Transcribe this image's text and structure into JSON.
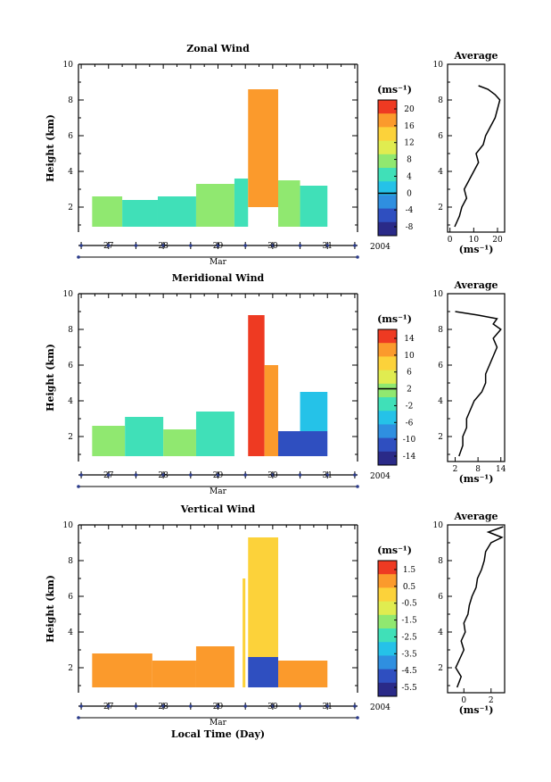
{
  "chart_data": [
    {
      "type": "heatmap",
      "title": "Zonal Wind",
      "ylabel": "Height (km)",
      "xlabel": "",
      "ylim": [
        0.6,
        10
      ],
      "y_ticks": [
        "2",
        "4",
        "6",
        "8",
        "10"
      ],
      "x_day_ticks": [
        "27",
        "28",
        "29",
        "30",
        "31"
      ],
      "month_label": "Mar",
      "year_label": "2004",
      "colorbar": {
        "unit": "(ms⁻¹)",
        "ticks": [
          "20",
          "16",
          "12",
          "8",
          "4",
          "0",
          "-4",
          "-8"
        ],
        "range": [
          -10,
          22
        ],
        "zero_contour": 0
      },
      "data_blocks": [
        {
          "day_start": 26.7,
          "day_end": 27.25,
          "z_bottom": 0.9,
          "z_top": 2.6,
          "value": 6
        },
        {
          "day_start": 27.25,
          "day_end": 27.9,
          "z_bottom": 0.9,
          "z_top": 2.4,
          "value": 4
        },
        {
          "day_start": 27.9,
          "day_end": 28.6,
          "z_bottom": 0.9,
          "z_top": 2.6,
          "value": 3
        },
        {
          "day_start": 28.6,
          "day_end": 29.3,
          "z_bottom": 0.9,
          "z_top": 3.3,
          "value": 6
        },
        {
          "day_start": 29.3,
          "day_end": 29.55,
          "z_bottom": 0.9,
          "z_top": 3.6,
          "value": 3
        },
        {
          "day_start": 29.55,
          "day_end": 30.1,
          "z_bottom": 2.0,
          "z_top": 8.6,
          "value": 18
        },
        {
          "day_start": 30.1,
          "day_end": 30.5,
          "z_bottom": 0.9,
          "z_top": 3.5,
          "value": 9
        },
        {
          "day_start": 30.5,
          "day_end": 31.0,
          "z_bottom": 0.9,
          "z_top": 3.2,
          "value": 4
        }
      ],
      "profile": {
        "title": "Average",
        "xlabel": "(ms⁻¹)",
        "x_ticks": [
          "0",
          "10",
          "20"
        ],
        "xlim": [
          -1,
          23
        ],
        "height": [
          0.9,
          1.5,
          2.0,
          2.5,
          3.0,
          3.5,
          4.0,
          4.5,
          5.0,
          5.5,
          6.0,
          6.5,
          7.0,
          7.5,
          8.0,
          8.3,
          8.6,
          8.8
        ],
        "value": [
          2,
          4,
          5,
          7,
          6,
          8,
          10,
          12,
          11,
          14,
          15,
          17,
          19,
          20,
          21,
          19,
          16,
          12
        ]
      }
    },
    {
      "type": "heatmap",
      "title": "Meridional Wind",
      "ylabel": "Height (km)",
      "xlabel": "",
      "ylim": [
        0.6,
        10
      ],
      "y_ticks": [
        "2",
        "4",
        "6",
        "8",
        "10"
      ],
      "x_day_ticks": [
        "27",
        "28",
        "29",
        "30",
        "31"
      ],
      "month_label": "Mar",
      "year_label": "2004",
      "colorbar": {
        "unit": "(ms⁻¹)",
        "ticks": [
          "14",
          "10",
          "6",
          "2",
          "-2",
          "-6",
          "-10",
          "-14"
        ],
        "range": [
          -16,
          16
        ],
        "zero_contour": 2
      },
      "data_blocks": [
        {
          "day_start": 26.7,
          "day_end": 27.3,
          "z_bottom": 0.9,
          "z_top": 2.6,
          "value": 0
        },
        {
          "day_start": 27.3,
          "day_end": 28.0,
          "z_bottom": 0.9,
          "z_top": 3.1,
          "value": -1
        },
        {
          "day_start": 28.0,
          "day_end": 28.6,
          "z_bottom": 0.9,
          "z_top": 2.4,
          "value": 1
        },
        {
          "day_start": 28.6,
          "day_end": 29.3,
          "z_bottom": 0.9,
          "z_top": 3.4,
          "value": -1
        },
        {
          "day_start": 29.55,
          "day_end": 29.85,
          "z_bottom": 0.9,
          "z_top": 8.8,
          "value": 16
        },
        {
          "day_start": 29.85,
          "day_end": 30.1,
          "z_bottom": 0.9,
          "z_top": 6.0,
          "value": 12
        },
        {
          "day_start": 30.1,
          "day_end": 31.0,
          "z_bottom": 0.9,
          "z_top": 2.3,
          "value": -12
        },
        {
          "day_start": 30.5,
          "day_end": 31.0,
          "z_bottom": 2.3,
          "z_top": 4.5,
          "value": -4
        }
      ],
      "profile": {
        "title": "Average",
        "xlabel": "(ms⁻¹)",
        "x_ticks": [
          "2",
          "8",
          "14"
        ],
        "xlim": [
          0,
          15
        ],
        "height": [
          0.9,
          1.5,
          2.0,
          2.5,
          3.0,
          3.5,
          4.0,
          4.5,
          5.0,
          5.5,
          6.0,
          6.5,
          7.0,
          7.5,
          8.0,
          8.3,
          8.6,
          8.8,
          9.0
        ],
        "value": [
          3,
          4,
          4,
          5,
          5,
          6,
          7,
          9,
          10,
          10,
          11,
          12,
          13,
          12,
          14,
          12,
          13,
          8,
          2
        ]
      }
    },
    {
      "type": "heatmap",
      "title": "Vertical Wind",
      "ylabel": "Height (km)",
      "xlabel": "Local Time (Day)",
      "ylim": [
        0.6,
        10
      ],
      "y_ticks": [
        "2",
        "4",
        "6",
        "8",
        "10"
      ],
      "x_day_ticks": [
        "27",
        "28",
        "29",
        "30",
        "31"
      ],
      "month_label": "Mar",
      "year_label": "2004",
      "colorbar": {
        "unit": "(ms⁻¹)",
        "ticks": [
          "1.5",
          "0.5",
          "-0.5",
          "-1.5",
          "-2.5",
          "-3.5",
          "-4.5",
          "-5.5"
        ],
        "range": [
          -6,
          2
        ]
      },
      "data_blocks": [
        {
          "day_start": 26.7,
          "day_end": 27.8,
          "z_bottom": 0.9,
          "z_top": 2.8,
          "value": 0.6
        },
        {
          "day_start": 27.8,
          "day_end": 28.6,
          "z_bottom": 0.9,
          "z_top": 2.4,
          "value": 0.8
        },
        {
          "day_start": 28.6,
          "day_end": 29.3,
          "z_bottom": 0.9,
          "z_top": 3.2,
          "value": 0.5
        },
        {
          "day_start": 29.45,
          "day_end": 29.5,
          "z_bottom": 0.9,
          "z_top": 7.0,
          "value": 0.3
        },
        {
          "day_start": 29.55,
          "day_end": 30.1,
          "z_bottom": 2.6,
          "z_top": 9.3,
          "value": -0.4
        },
        {
          "day_start": 29.55,
          "day_end": 30.1,
          "z_bottom": 0.9,
          "z_top": 2.6,
          "value": -5.0
        },
        {
          "day_start": 30.1,
          "day_end": 31.0,
          "z_bottom": 0.9,
          "z_top": 2.4,
          "value": 0.4
        }
      ],
      "profile": {
        "title": "Average",
        "xlabel": "(ms⁻¹)",
        "x_ticks": [
          "0",
          "2"
        ],
        "xlim": [
          -1.2,
          3
        ],
        "height": [
          0.9,
          1.5,
          2.0,
          2.5,
          3.0,
          3.5,
          4.0,
          4.5,
          5.0,
          5.5,
          6.0,
          6.5,
          7.0,
          7.5,
          8.0,
          8.5,
          9.0,
          9.3,
          9.6,
          9.9
        ],
        "value": [
          -0.5,
          -0.2,
          -0.6,
          -0.3,
          0.0,
          -0.2,
          0.1,
          0.0,
          0.3,
          0.4,
          0.6,
          0.9,
          1.0,
          1.3,
          1.5,
          1.6,
          2.0,
          2.8,
          1.8,
          2.9
        ]
      }
    }
  ]
}
